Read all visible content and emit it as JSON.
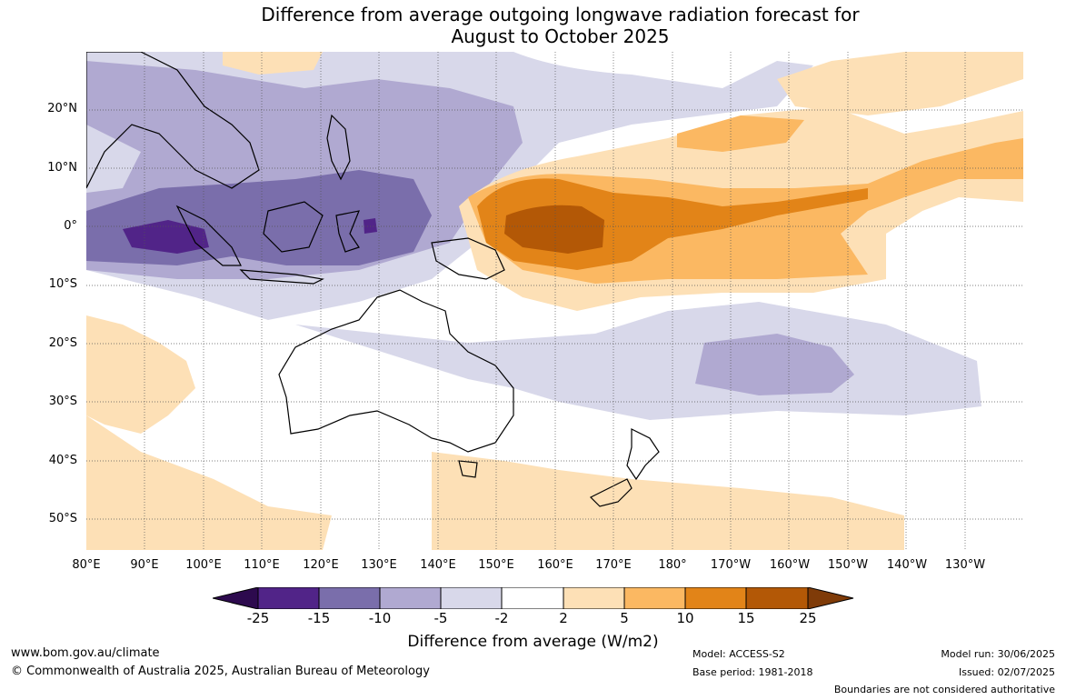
{
  "title": {
    "line1": "Difference from average outgoing longwave radiation forecast for",
    "line2": "August to October 2025"
  },
  "map": {
    "lat_labels": [
      "20°N",
      "10°N",
      "0°",
      "10°S",
      "20°S",
      "30°S",
      "40°S",
      "50°S"
    ],
    "lon_labels": [
      "80°E",
      "90°E",
      "100°E",
      "110°E",
      "120°E",
      "130°E",
      "140°E",
      "150°E",
      "160°E",
      "170°E",
      "180°",
      "170°W",
      "160°W",
      "150°W",
      "140°W",
      "130°W"
    ]
  },
  "colorbar": {
    "ticks": [
      "-25",
      "-15",
      "-10",
      "-5",
      "-2",
      "2",
      "5",
      "10",
      "15",
      "25"
    ],
    "colors": {
      "neg_extreme": "#2d0a4e",
      "neg_25_15": "#512488",
      "neg_15_10": "#7a6eab",
      "neg_10_5": "#b0a9d1",
      "neg_5_2": "#d8d8ea",
      "neutral": "#ffffff",
      "pos_2_5": "#fde0b6",
      "pos_5_10": "#fbb862",
      "pos_10_15": "#e28418",
      "pos_15_25": "#b35806",
      "pos_extreme": "#7f3b08"
    },
    "label": "Difference from average (W/m2)"
  },
  "footer": {
    "url": "www.bom.gov.au/climate",
    "copyright": "© Commonwealth of Australia 2025, Australian Bureau of Meteorology",
    "model": "Model: ACCESS-S2",
    "base_period": "Base period: 1981-2018",
    "model_run": "Model run: 30/06/2025",
    "issued": "Issued: 02/07/2025",
    "disclaimer": "Boundaries are not considered authoritative"
  }
}
